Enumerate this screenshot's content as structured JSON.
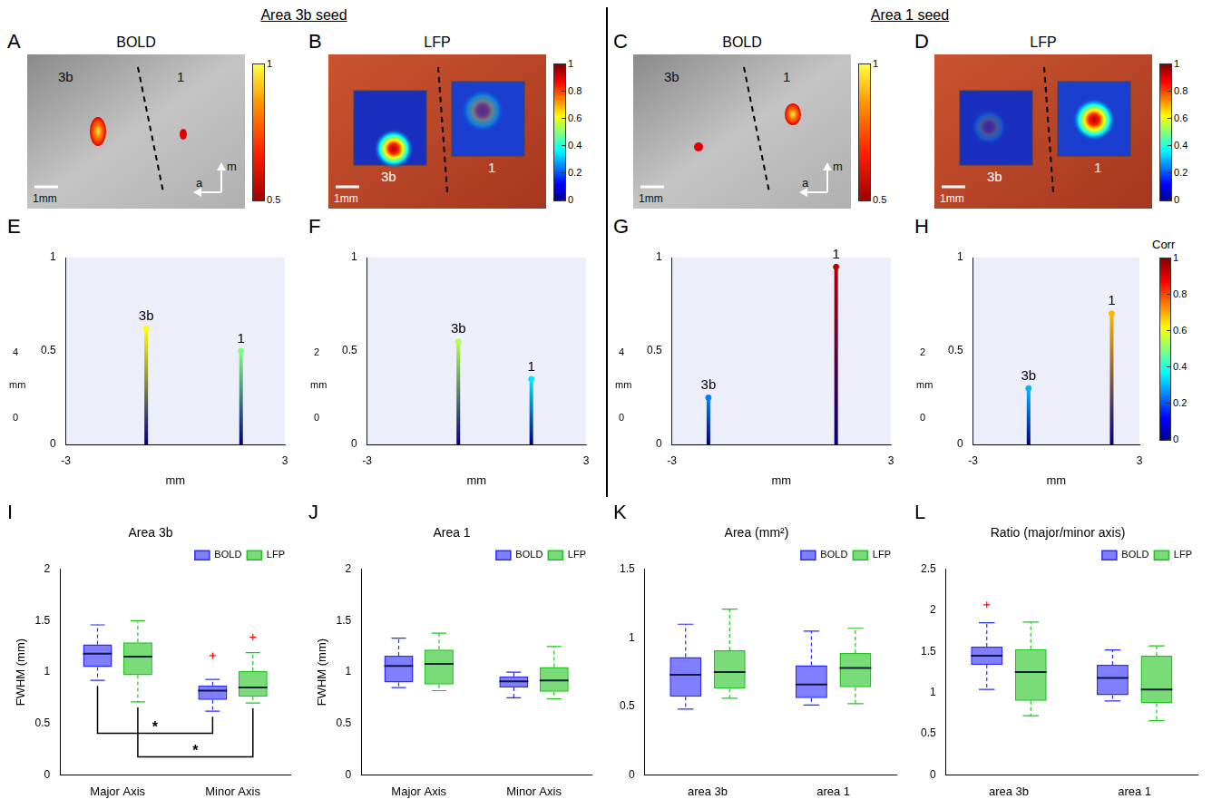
{
  "header": {
    "left": "Area 3b seed",
    "right": "Area 1 seed"
  },
  "images": [
    {
      "letter": "A",
      "title": "BOLD",
      "labels": [
        "3b",
        "1"
      ],
      "scale_bar": "1mm",
      "orientation": [
        "m",
        "a"
      ],
      "colorbar": {
        "range": [
          0.5,
          1
        ],
        "ticks": [
          0.5,
          1
        ]
      }
    },
    {
      "letter": "B",
      "title": "LFP",
      "labels": [
        "3b",
        "1"
      ],
      "scale_bar": "1mm",
      "colorbar": {
        "range": [
          0,
          1
        ],
        "ticks": [
          0,
          0.2,
          0.4,
          0.6,
          0.8,
          1
        ]
      }
    },
    {
      "letter": "C",
      "title": "BOLD",
      "labels": [
        "3b",
        "1"
      ],
      "scale_bar": "1mm",
      "orientation": [
        "m",
        "a"
      ],
      "colorbar": {
        "range": [
          0.5,
          1
        ],
        "ticks": [
          0.5,
          1
        ]
      }
    },
    {
      "letter": "D",
      "title": "LFP",
      "labels": [
        "3b",
        "1"
      ],
      "scale_bar": "1mm",
      "colorbar": {
        "range": [
          0,
          1
        ],
        "ticks": [
          0,
          0.2,
          0.4,
          0.6,
          0.8,
          1
        ]
      }
    }
  ],
  "chart_data": [
    {
      "letter": "E",
      "type": "surface",
      "xlabel": "mm",
      "xlim": [
        -3,
        3
      ],
      "xticks": [
        -3,
        3
      ],
      "ylim": [
        0,
        1
      ],
      "yticks": [
        0,
        0.5,
        1
      ],
      "depth_label": "mm",
      "depth_ticks": [
        0,
        4
      ],
      "peaks": {
        "labels": [
          "3b",
          "1"
        ],
        "x": [
          -0.8,
          1.8
        ],
        "values": [
          0.62,
          0.5
        ]
      }
    },
    {
      "letter": "F",
      "type": "surface",
      "xlabel": "mm",
      "xlim": [
        -3,
        3
      ],
      "xticks": [
        -3,
        3
      ],
      "ylim": [
        0,
        1
      ],
      "yticks": [
        0,
        0.5,
        1
      ],
      "depth_label": "mm",
      "depth_ticks": [
        0,
        2
      ],
      "peaks": {
        "labels": [
          "3b",
          "1"
        ],
        "x": [
          -0.5,
          1.5
        ],
        "values": [
          0.55,
          0.35
        ]
      }
    },
    {
      "letter": "G",
      "type": "surface",
      "xlabel": "mm",
      "xlim": [
        -3,
        3
      ],
      "xticks": [
        -3,
        3
      ],
      "ylim": [
        0,
        1
      ],
      "yticks": [
        0,
        0.5,
        1
      ],
      "depth_label": "mm",
      "depth_ticks": [
        0,
        4
      ],
      "peaks": {
        "labels": [
          "3b",
          "1"
        ],
        "x": [
          -2,
          1.5
        ],
        "values": [
          0.25,
          0.95
        ]
      }
    },
    {
      "letter": "H",
      "type": "surface",
      "xlabel": "mm",
      "xlim": [
        -3,
        3
      ],
      "xticks": [
        -3,
        3
      ],
      "ylim": [
        0,
        1
      ],
      "yticks": [
        0,
        0.5,
        1
      ],
      "depth_label": "mm",
      "depth_ticks": [
        0,
        2
      ],
      "peaks": {
        "labels": [
          "3b",
          "1"
        ],
        "x": [
          -1,
          2
        ],
        "values": [
          0.3,
          0.7
        ]
      },
      "colorbar": {
        "label": "Corr",
        "range": [
          0,
          1
        ],
        "ticks": [
          0,
          0.2,
          0.4,
          0.6,
          0.8,
          1
        ]
      }
    },
    {
      "letter": "I",
      "type": "box",
      "title": "Area 3b",
      "ylabel": "FWHM (mm)",
      "categories": [
        "Major Axis",
        "Minor Axis"
      ],
      "ylim": [
        0,
        2
      ],
      "yticks": [
        0,
        0.5,
        1,
        1.5,
        2
      ],
      "grid": false,
      "legend": "top",
      "series": [
        {
          "name": "BOLD",
          "color": "#2b2bff",
          "values": [
            {
              "min": 0.92,
              "q1": 1.05,
              "median": 1.18,
              "q3": 1.27,
              "max": 1.46,
              "outliers": []
            },
            {
              "min": 0.62,
              "q1": 0.73,
              "median": 0.82,
              "q3": 0.87,
              "max": 0.93,
              "outliers": [
                1.16
              ]
            }
          ]
        },
        {
          "name": "LFP",
          "color": "#1fc41f",
          "values": [
            {
              "min": 0.71,
              "q1": 0.97,
              "median": 1.15,
              "q3": 1.29,
              "max": 1.5,
              "outliers": []
            },
            {
              "min": 0.7,
              "q1": 0.76,
              "median": 0.85,
              "q3": 1.01,
              "max": 1.19,
              "outliers": [
                1.34
              ]
            }
          ]
        }
      ],
      "significance": [
        {
          "series": "BOLD",
          "text": "*"
        },
        {
          "series": "LFP",
          "text": "*"
        }
      ]
    },
    {
      "letter": "J",
      "type": "box",
      "title": "Area 1",
      "ylabel": "FWHM (mm)",
      "categories": [
        "Major Axis",
        "Minor Axis"
      ],
      "ylim": [
        0,
        2
      ],
      "yticks": [
        0,
        0.5,
        1,
        1.5,
        2
      ],
      "grid": false,
      "legend": "top",
      "series": [
        {
          "name": "BOLD",
          "color": "#2b2bff",
          "values": [
            {
              "min": 0.85,
              "q1": 0.9,
              "median": 1.06,
              "q3": 1.16,
              "max": 1.33,
              "outliers": []
            },
            {
              "min": 0.75,
              "q1": 0.85,
              "median": 0.91,
              "q3": 0.96,
              "max": 1.0,
              "outliers": []
            }
          ]
        },
        {
          "name": "LFP",
          "color": "#1fc41f",
          "values": [
            {
              "min": 0.82,
              "q1": 0.88,
              "median": 1.08,
              "q3": 1.22,
              "max": 1.38,
              "outliers": []
            },
            {
              "min": 0.74,
              "q1": 0.81,
              "median": 0.92,
              "q3": 1.05,
              "max": 1.25,
              "outliers": []
            }
          ]
        }
      ]
    },
    {
      "letter": "K",
      "type": "box",
      "title": "Area (mm²)",
      "categories": [
        "area 3b",
        "area 1"
      ],
      "ylim": [
        0,
        1.5
      ],
      "yticks": [
        0,
        0.5,
        1,
        1.5
      ],
      "grid": false,
      "legend": "top",
      "series": [
        {
          "name": "BOLD",
          "color": "#2b2bff",
          "values": [
            {
              "min": 0.48,
              "q1": 0.57,
              "median": 0.73,
              "q3": 0.86,
              "max": 1.1,
              "outliers": []
            },
            {
              "min": 0.51,
              "q1": 0.56,
              "median": 0.66,
              "q3": 0.8,
              "max": 1.05,
              "outliers": []
            }
          ]
        },
        {
          "name": "LFP",
          "color": "#1fc41f",
          "values": [
            {
              "min": 0.56,
              "q1": 0.63,
              "median": 0.75,
              "q3": 0.91,
              "max": 1.21,
              "outliers": []
            },
            {
              "min": 0.52,
              "q1": 0.64,
              "median": 0.78,
              "q3": 0.89,
              "max": 1.07,
              "outliers": []
            }
          ]
        }
      ]
    },
    {
      "letter": "L",
      "type": "box",
      "title": "Ratio (major/minor axis)",
      "categories": [
        "area 3b",
        "area 1"
      ],
      "ylim": [
        0,
        2.5
      ],
      "yticks": [
        0,
        0.5,
        1,
        1.5,
        2,
        2.5
      ],
      "grid": false,
      "legend": "top",
      "series": [
        {
          "name": "BOLD",
          "color": "#2b2bff",
          "values": [
            {
              "min": 1.04,
              "q1": 1.34,
              "median": 1.45,
              "q3": 1.56,
              "max": 1.85,
              "outliers": [
                2.07
              ]
            },
            {
              "min": 0.9,
              "q1": 0.97,
              "median": 1.18,
              "q3": 1.34,
              "max": 1.52,
              "outliers": []
            }
          ]
        },
        {
          "name": "LFP",
          "color": "#1fc41f",
          "values": [
            {
              "min": 0.72,
              "q1": 0.9,
              "median": 1.25,
              "q3": 1.53,
              "max": 1.86,
              "outliers": []
            },
            {
              "min": 0.66,
              "q1": 0.87,
              "median": 1.04,
              "q3": 1.45,
              "max": 1.57,
              "outliers": []
            }
          ]
        }
      ]
    }
  ]
}
